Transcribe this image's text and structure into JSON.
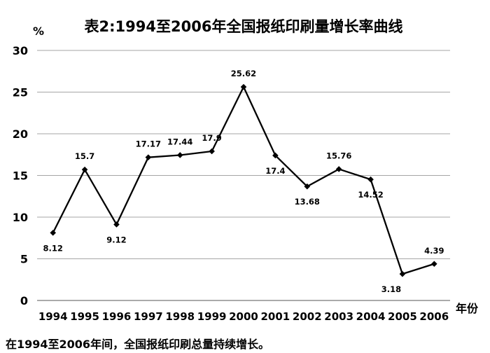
{
  "chart_data": {
    "type": "line",
    "title": "表2:1994至2006年全国报纸印刷量增长率曲线",
    "ylabel": "%",
    "xlabel": "年份",
    "categories": [
      "1994",
      "1995",
      "1996",
      "1997",
      "1998",
      "1999",
      "2000",
      "2001",
      "2002",
      "2003",
      "2004",
      "2005",
      "2006"
    ],
    "series": [
      {
        "values": [
          8.12,
          15.7,
          9.12,
          17.17,
          17.44,
          17.9,
          25.62,
          17.4,
          13.68,
          15.76,
          14.52,
          3.18,
          4.39
        ],
        "data_labels": [
          "8.12",
          "15.7",
          "9.12",
          "17.17",
          "17.44",
          "17.9",
          "25.62",
          "17.4",
          "13.68",
          "15.76",
          "14.52",
          "3.18",
          "4.39"
        ]
      }
    ],
    "ylim": [
      0,
      30
    ],
    "yticks": [
      0,
      5,
      10,
      15,
      20,
      25,
      30
    ],
    "grid": "horizontal",
    "legend": "none",
    "line_color": "#000000",
    "marker": "diamond"
  },
  "caption": "在1994至2006年间，全国报纸印刷总量持续增长。"
}
